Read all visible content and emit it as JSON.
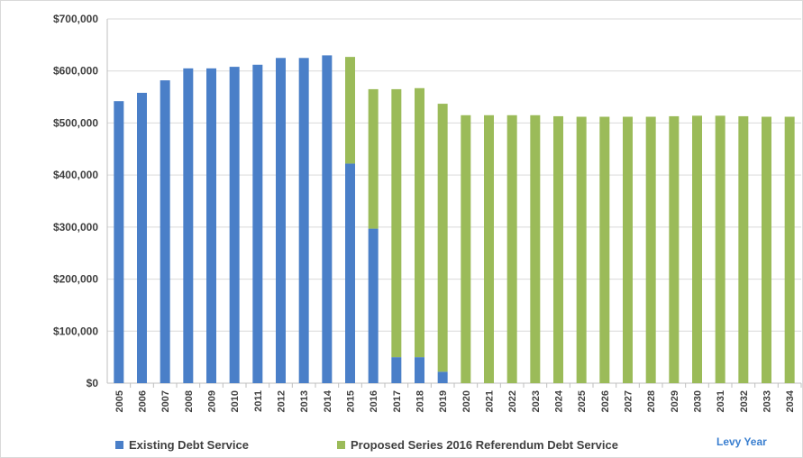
{
  "chart_data": {
    "type": "bar",
    "stacked": true,
    "categories": [
      "2005",
      "2006",
      "2007",
      "2008",
      "2009",
      "2010",
      "2011",
      "2012",
      "2013",
      "2014",
      "2015",
      "2016",
      "2017",
      "2018",
      "2019",
      "2020",
      "2021",
      "2022",
      "2023",
      "2024",
      "2025",
      "2026",
      "2027",
      "2028",
      "2029",
      "2030",
      "2031",
      "2032",
      "2033",
      "2034"
    ],
    "series": [
      {
        "name": "Existing Debt Service",
        "color": "#4a7fc8",
        "values": [
          542000,
          558000,
          582000,
          605000,
          605000,
          608000,
          612000,
          625000,
          625000,
          630000,
          422000,
          297000,
          50000,
          50000,
          22000,
          0,
          0,
          0,
          0,
          0,
          0,
          0,
          0,
          0,
          0,
          0,
          0,
          0,
          0,
          0
        ]
      },
      {
        "name": "Proposed Series 2016 Referendum Debt Service",
        "color": "#9bbb59",
        "values": [
          0,
          0,
          0,
          0,
          0,
          0,
          0,
          0,
          0,
          0,
          205000,
          268000,
          515000,
          517000,
          515000,
          515000,
          515000,
          515000,
          515000,
          513000,
          512000,
          512000,
          512000,
          512000,
          513000,
          514000,
          514000,
          513000,
          512000,
          512000
        ]
      }
    ],
    "yticks": [
      "$0",
      "$100,000",
      "$200,000",
      "$300,000",
      "$400,000",
      "$500,000",
      "$600,000",
      "$700,000"
    ],
    "ylim": [
      0,
      700000
    ],
    "xlabel": "Levy Year",
    "ylabel": "",
    "title": "",
    "grid": true,
    "legend_position": "bottom"
  }
}
